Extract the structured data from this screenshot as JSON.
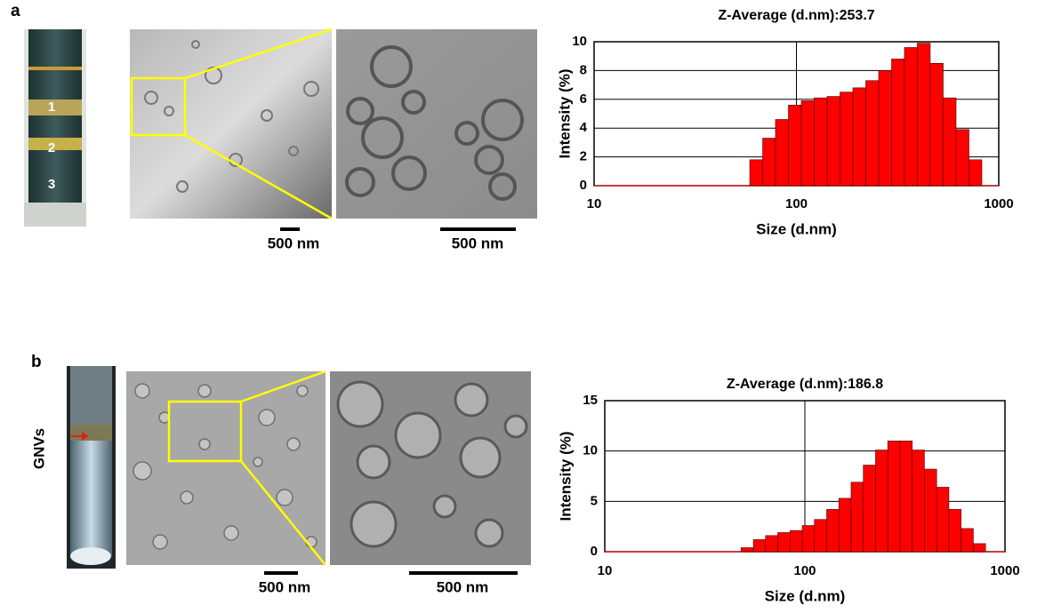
{
  "panels": [
    {
      "label": "a",
      "tube_labels": [
        "1",
        "2",
        "3"
      ],
      "scale_bars": [
        "500 nm",
        "500 nm"
      ]
    },
    {
      "label": "b",
      "arrow_label": "GNVs",
      "scale_bars": [
        "500 nm",
        "500 nm"
      ]
    }
  ],
  "chart_data": [
    {
      "type": "histogram",
      "title": "Z-Average (d.nm):253.7",
      "xlabel": "Size (d.nm)",
      "ylabel": "Intensity (%)",
      "xscale": "log",
      "xlim": [
        10,
        1000
      ],
      "xticks": [
        10,
        100,
        1000
      ],
      "ylim": [
        0,
        10
      ],
      "yticks": [
        0,
        2,
        4,
        6,
        8,
        10
      ],
      "grid": true,
      "color": "#ff0000",
      "bins": [
        58.8,
        68.1,
        78.8,
        91.3,
        105.7,
        122.4,
        141.8,
        164.2,
        190.1,
        220.2,
        255.0,
        295.3,
        341.9,
        395.9,
        458.5,
        531.2,
        615.1,
        712.4,
        825.0
      ],
      "values": [
        1.8,
        3.3,
        4.6,
        5.6,
        5.9,
        6.1,
        6.2,
        6.5,
        6.8,
        7.3,
        8.0,
        8.8,
        9.6,
        9.9,
        8.5,
        6.1,
        3.9,
        1.8
      ]
    },
    {
      "type": "histogram",
      "title": "Z-Average (d.nm):186.8",
      "xlabel": "Size (d.nm)",
      "ylabel": "Intensity (%)",
      "xscale": "log",
      "xlim": [
        10,
        1000
      ],
      "xticks": [
        10,
        100,
        1000
      ],
      "ylim": [
        0,
        15
      ],
      "yticks": [
        0,
        5,
        10,
        15
      ],
      "grid": true,
      "color": "#ff0000",
      "bins": [
        48.0,
        55.3,
        63.6,
        73.2,
        84.3,
        97.0,
        111.6,
        128.5,
        147.9,
        170.2,
        195.9,
        225.5,
        259.6,
        298.8,
        343.9,
        395.8,
        455.6,
        524.4,
        603.6,
        694.8,
        799.7
      ],
      "values": [
        0.4,
        1.2,
        1.6,
        1.9,
        2.1,
        2.6,
        3.2,
        4.2,
        5.3,
        6.9,
        8.6,
        10.1,
        11.0,
        11.0,
        10.1,
        8.2,
        6.4,
        4.2,
        2.3,
        0.8
      ]
    }
  ]
}
